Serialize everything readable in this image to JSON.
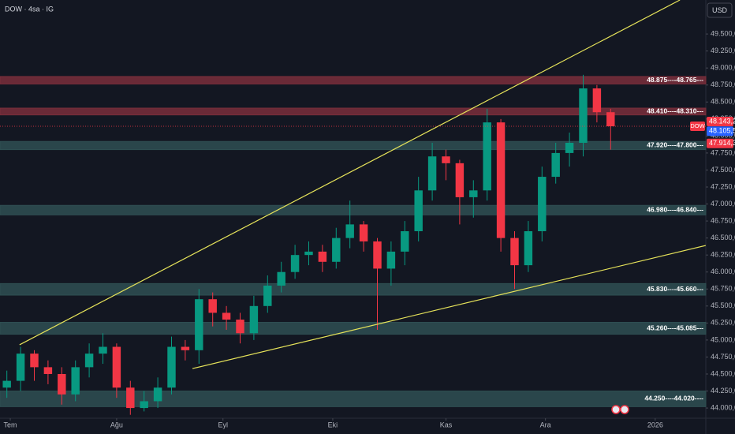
{
  "chart_data": {
    "type": "candlestick",
    "title": "DOW · 4sa · IG",
    "currency": "USD",
    "symbol_tag": "DOW",
    "x": [
      2,
      6,
      10,
      14,
      18,
      22,
      26,
      30,
      34,
      38,
      42,
      46,
      50,
      54,
      58,
      62,
      66,
      70,
      74,
      78,
      82,
      86,
      90,
      94,
      98,
      102,
      106,
      110,
      114,
      118,
      122,
      126,
      130,
      134,
      138,
      142,
      146,
      150,
      154,
      158,
      162,
      166,
      170,
      174,
      178
    ],
    "open": [
      44300,
      44400,
      44800,
      44600,
      44500,
      44200,
      44600,
      44800,
      44900,
      44300,
      44000,
      44100,
      44300,
      44900,
      44850,
      45600,
      45400,
      45300,
      45100,
      45500,
      45800,
      46000,
      46250,
      46300,
      46150,
      46500,
      46700,
      46450,
      46050,
      46300,
      46600,
      47200,
      47700,
      47600,
      47100,
      47200,
      48200,
      46500,
      46100,
      46600,
      47400,
      47750,
      47900,
      48700,
      48350
    ],
    "high": [
      44550,
      44900,
      44850,
      44700,
      44600,
      44700,
      44950,
      45100,
      44950,
      44400,
      44250,
      44450,
      45050,
      45000,
      45750,
      45700,
      45500,
      45400,
      45650,
      45950,
      46150,
      46400,
      46450,
      46400,
      46650,
      47050,
      46750,
      46500,
      46450,
      46750,
      47400,
      47900,
      47800,
      47650,
      47350,
      48400,
      48250,
      46600,
      46750,
      47550,
      47900,
      48050,
      48900,
      48750,
      48400
    ],
    "low": [
      44150,
      44250,
      44400,
      44350,
      44050,
      44100,
      44450,
      44650,
      44150,
      43900,
      43950,
      44000,
      44200,
      44700,
      44650,
      45200,
      45150,
      44950,
      45000,
      45400,
      45700,
      45900,
      46100,
      46000,
      46050,
      46350,
      46300,
      45150,
      45800,
      46100,
      46450,
      47050,
      47350,
      46700,
      46800,
      47050,
      46300,
      45750,
      46000,
      46450,
      47300,
      47550,
      47700,
      48200,
      47800
    ],
    "close": [
      44400,
      44800,
      44600,
      44500,
      44200,
      44600,
      44800,
      44900,
      44300,
      44000,
      44100,
      44300,
      44900,
      44850,
      45600,
      45400,
      45300,
      45100,
      45500,
      45800,
      46000,
      46250,
      46300,
      46150,
      46500,
      46700,
      46450,
      46050,
      46300,
      46600,
      47200,
      47700,
      47600,
      47100,
      47200,
      48200,
      46500,
      46100,
      46600,
      47400,
      47750,
      47900,
      48700,
      48350,
      48143.2
    ],
    "up_color": "#089981",
    "down_color": "#f23645",
    "xlim": [
      0,
      205.75
    ],
    "xticks": [
      {
        "value": 3,
        "label": "Tem"
      },
      {
        "value": 34,
        "label": "Ağu"
      },
      {
        "value": 65,
        "label": "Eyl"
      },
      {
        "value": 97,
        "label": "Eki"
      },
      {
        "value": 130,
        "label": "Kas"
      },
      {
        "value": 159,
        "label": "Ara"
      },
      {
        "value": 191,
        "label": "2026"
      }
    ],
    "ylim": [
      43850,
      50000
    ],
    "yticks": [
      {
        "value": 44000,
        "label": "44.000,0"
      },
      {
        "value": 44250,
        "label": "44.250,0"
      },
      {
        "value": 44500,
        "label": "44.500,0"
      },
      {
        "value": 44750,
        "label": "44.750,0"
      },
      {
        "value": 45000,
        "label": "45.000,0"
      },
      {
        "value": 45250,
        "label": "45.250,0"
      },
      {
        "value": 45500,
        "label": "45.500,0"
      },
      {
        "value": 45750,
        "label": "45.750,0"
      },
      {
        "value": 46000,
        "label": "46.000,0"
      },
      {
        "value": 46250,
        "label": "46.250,0"
      },
      {
        "value": 46500,
        "label": "46.500,0"
      },
      {
        "value": 46750,
        "label": "46.750,0"
      },
      {
        "value": 47000,
        "label": "47.000,0"
      },
      {
        "value": 47250,
        "label": "47.250,0"
      },
      {
        "value": 47500,
        "label": "47.500,0"
      },
      {
        "value": 47750,
        "label": "47.750,0"
      },
      {
        "value": 48000,
        "label": "48.000,0"
      },
      {
        "value": 48250,
        "label": "48.250,0"
      },
      {
        "value": 48500,
        "label": "48.500,0"
      },
      {
        "value": 48750,
        "label": "48.750,0"
      },
      {
        "value": 49000,
        "label": "49.000,0"
      },
      {
        "value": 49250,
        "label": "49.250,0"
      },
      {
        "value": 49500,
        "label": "49.500,0"
      }
    ],
    "grid": false,
    "zones": [
      {
        "top": 48875,
        "bottom": 48765,
        "label": "48.875----48.765---",
        "color": "#7a2e3b"
      },
      {
        "top": 48410,
        "bottom": 48310,
        "label": "48.410----48.310---",
        "color": "#7a2e3b"
      },
      {
        "top": 47920,
        "bottom": 47800,
        "label": "47.920----47.800---",
        "color": "#2f4f52"
      },
      {
        "top": 46980,
        "bottom": 46840,
        "label": "46.980----46.840---",
        "color": "#2f4f52"
      },
      {
        "top": 45830,
        "bottom": 45660,
        "label": "45.830----45.660---",
        "color": "#2f4f52"
      },
      {
        "top": 45260,
        "bottom": 45085,
        "label": "45.260----45.085---",
        "color": "#2f4f52"
      },
      {
        "top": 44250,
        "bottom": 44020,
        "label": "44.250----44.020----",
        "color": "#2f4f52"
      }
    ],
    "trendlines": [
      {
        "x": [
          5.7,
          198.2
        ],
        "y": [
          44930,
          50000
        ],
        "color": "#e6e35a"
      },
      {
        "x": [
          56.1,
          205.7
        ],
        "y": [
          44580,
          46390
        ],
        "color": "#e6e35a"
      }
    ],
    "price_labels": [
      {
        "value": 48143.2,
        "label": "48.143,2",
        "color": "#f23645"
      },
      {
        "value": 48105.5,
        "label": "48.105,5",
        "color": "#2962ff"
      },
      {
        "value": 47914.3,
        "label": "47.914,3",
        "color": "#f23645"
      }
    ]
  }
}
